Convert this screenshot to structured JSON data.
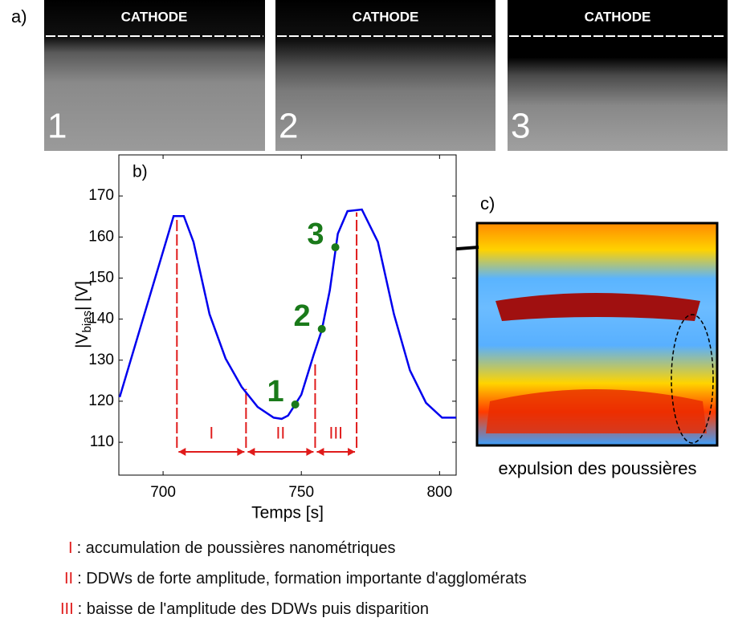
{
  "panel_a": {
    "label": "a)",
    "images": [
      {
        "header": "CATHODE",
        "number": "1"
      },
      {
        "header": "CATHODE",
        "number": "2"
      },
      {
        "header": "CATHODE",
        "number": "3"
      }
    ]
  },
  "panel_c": {
    "label": "c)",
    "caption": "expulsion des poussières"
  },
  "legend": [
    {
      "key": "I",
      "text": ": accumulation de poussières nanométriques"
    },
    {
      "key": "II",
      "text": ": DDWs de forte amplitude, formation importante d'agglomérats"
    },
    {
      "key": "III",
      "text": ": baisse de l'amplitude des DDWs puis disparition"
    }
  ],
  "chart_data": {
    "type": "line",
    "panel_label": "b)",
    "xlabel": "Temps [s]",
    "ylabel": "|V",
    "ylabel_sub": "bias",
    "ylabel_end": "| [V]",
    "x": [
      684.3,
      703.8,
      707.5,
      711,
      716.8,
      722.6,
      728.4,
      734.2,
      740,
      742.9,
      745.2,
      747.2,
      750,
      754.5,
      757.4,
      760.3,
      763.2,
      766.7,
      771.9,
      777.7,
      783.5,
      789.3,
      795.1,
      800.9,
      806
    ],
    "series": [
      {
        "color": "#0000ee",
        "values": [
          121,
          165.1,
          165.1,
          158.8,
          141.2,
          130.4,
          123.5,
          118.6,
          116,
          115.7,
          116.5,
          118.6,
          121.6,
          131.4,
          137.3,
          147,
          160.8,
          166.3,
          166.7,
          158.8,
          141.2,
          127.5,
          119.6,
          116,
          116
        ]
      }
    ],
    "points": {
      "x": [
        747.8,
        757.4,
        762.3
      ],
      "values": [
        119.2,
        137.6,
        157.5
      ],
      "labels": [
        "1",
        "2",
        "3"
      ],
      "color": "#1a7a1a"
    },
    "dividers": {
      "x": [
        705,
        730,
        755,
        770
      ],
      "top": [
        165,
        123,
        129,
        166
      ],
      "color": "#e01b1b"
    },
    "phases": [
      "I",
      "II",
      "III"
    ],
    "xlim": [
      684,
      806
    ],
    "ylim": [
      102,
      180
    ],
    "xticks": [
      700,
      750,
      800
    ],
    "yticks": [
      110,
      120,
      130,
      140,
      150,
      160,
      170
    ]
  }
}
